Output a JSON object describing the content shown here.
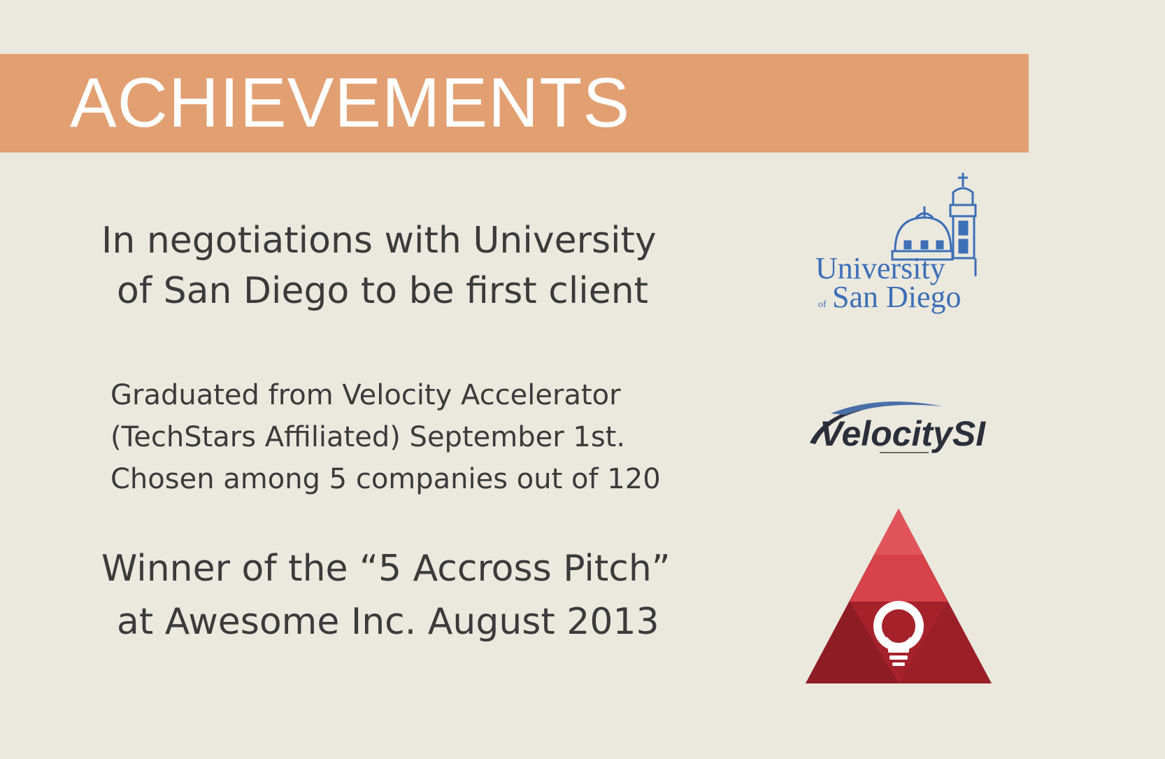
{
  "header": {
    "title": "ACHIEVEMENTS"
  },
  "achievements": [
    {
      "lines": [
        "In negotiations with University",
        "of San Diego to be first client"
      ],
      "logo": {
        "icon": "university-of-san-diego-logo",
        "text_line1": "University",
        "text_line2_prefix": "of",
        "text_line2": "San Diego"
      }
    },
    {
      "lines": [
        "Graduated from Velocity Accelerator",
        "(TechStars Affiliated) September 1st.",
        "Chosen among 5 companies out of 120"
      ],
      "logo": {
        "icon": "velocity-si-logo",
        "text": "VelocitySI"
      }
    },
    {
      "lines": [
        "Winner of the “5 Accross Pitch”",
        "at Awesome Inc. August 2013"
      ],
      "logo": {
        "icon": "awesome-inc-lightbulb-logo"
      }
    }
  ],
  "colors": {
    "background": "#ebe8de",
    "banner": "#e2a072",
    "banner_text": "#ffffff",
    "usd_blue": "#3d6fb6",
    "velocity_dark": "#2a2f3a",
    "awesome_red": "#b0252e"
  }
}
